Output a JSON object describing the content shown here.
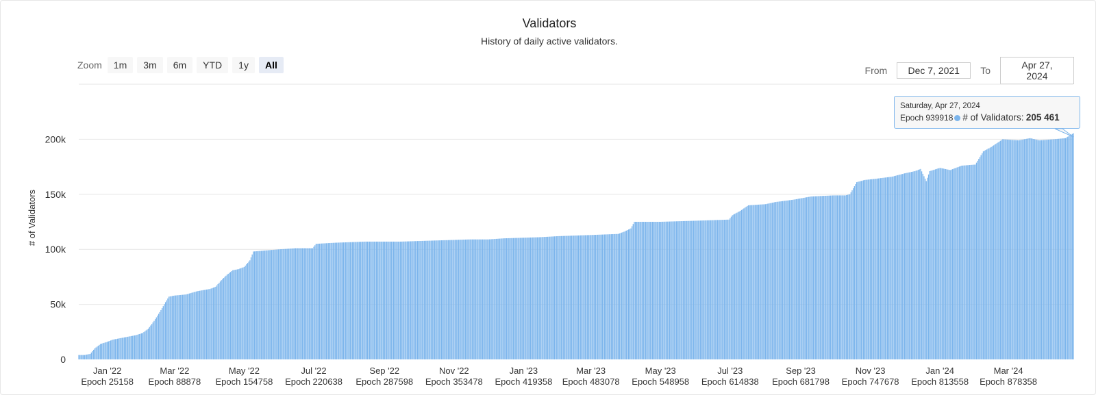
{
  "title": "Validators",
  "subtitle": "History of daily active validators.",
  "zoom": {
    "label": "Zoom",
    "buttons": [
      "1m",
      "3m",
      "6m",
      "YTD",
      "1y",
      "All"
    ],
    "active": "All"
  },
  "range": {
    "from_label": "From",
    "from_value": "Dec 7, 2021",
    "to_label": "To",
    "to_value": "Apr 27, 2024"
  },
  "tooltip": {
    "date": "Saturday, Apr 27, 2024",
    "epoch": "Epoch 939918",
    "series": "# of Validators:",
    "value": "205 461"
  },
  "colors": {
    "bar": "#7cb5ec",
    "grid": "#e6e6e6",
    "text": "#333333"
  },
  "chart_data": {
    "type": "bar",
    "title": "Validators",
    "subtitle": "History of daily active validators.",
    "ylabel": "# of Validators",
    "ylim": [
      0,
      250000
    ],
    "yticks": [
      {
        "label": "0",
        "value": 0
      },
      {
        "label": "50k",
        "value": 50000
      },
      {
        "label": "100k",
        "value": 100000
      },
      {
        "label": "150k",
        "value": 150000
      },
      {
        "label": "200k",
        "value": 200000
      }
    ],
    "xlim": [
      "2021-12-07",
      "2024-04-27"
    ],
    "xticks": [
      {
        "month": "Jan '22",
        "epoch": "Epoch 25158",
        "date": "2022-01-01"
      },
      {
        "month": "Mar '22",
        "epoch": "Epoch 88878",
        "date": "2022-03-01"
      },
      {
        "month": "May '22",
        "epoch": "Epoch 154758",
        "date": "2022-05-01"
      },
      {
        "month": "Jul '22",
        "epoch": "Epoch 220638",
        "date": "2022-07-01"
      },
      {
        "month": "Sep '22",
        "epoch": "Epoch 287598",
        "date": "2022-09-01"
      },
      {
        "month": "Nov '22",
        "epoch": "Epoch 353478",
        "date": "2022-11-01"
      },
      {
        "month": "Jan '23",
        "epoch": "Epoch 419358",
        "date": "2023-01-01"
      },
      {
        "month": "Mar '23",
        "epoch": "Epoch 483078",
        "date": "2023-03-01"
      },
      {
        "month": "May '23",
        "epoch": "Epoch 548958",
        "date": "2023-05-01"
      },
      {
        "month": "Jul '23",
        "epoch": "Epoch 614838",
        "date": "2023-07-01"
      },
      {
        "month": "Sep '23",
        "epoch": "Epoch 681798",
        "date": "2023-09-01"
      },
      {
        "month": "Nov '23",
        "epoch": "Epoch 747678",
        "date": "2023-11-01"
      },
      {
        "month": "Jan '24",
        "epoch": "Epoch 813558",
        "date": "2024-01-01"
      },
      {
        "month": "Mar '24",
        "epoch": "Epoch 878358",
        "date": "2024-03-01"
      }
    ],
    "series": [
      {
        "name": "# of Validators",
        "points": [
          [
            "2021-12-07",
            4000
          ],
          [
            "2021-12-12",
            4000
          ],
          [
            "2021-12-17",
            5000
          ],
          [
            "2021-12-21",
            10000
          ],
          [
            "2021-12-26",
            14000
          ],
          [
            "2022-01-01",
            16000
          ],
          [
            "2022-01-06",
            18000
          ],
          [
            "2022-01-11",
            19000
          ],
          [
            "2022-01-16",
            20000
          ],
          [
            "2022-01-21",
            21000
          ],
          [
            "2022-01-26",
            22000
          ],
          [
            "2022-02-01",
            24000
          ],
          [
            "2022-02-06",
            28000
          ],
          [
            "2022-02-11",
            35000
          ],
          [
            "2022-02-16",
            43000
          ],
          [
            "2022-02-21",
            52000
          ],
          [
            "2022-02-24",
            57000
          ],
          [
            "2022-03-01",
            58000
          ],
          [
            "2022-03-11",
            59000
          ],
          [
            "2022-03-21",
            62000
          ],
          [
            "2022-04-01",
            64000
          ],
          [
            "2022-04-06",
            66000
          ],
          [
            "2022-04-11",
            72000
          ],
          [
            "2022-04-16",
            77000
          ],
          [
            "2022-04-21",
            81000
          ],
          [
            "2022-04-26",
            82000
          ],
          [
            "2022-05-01",
            84000
          ],
          [
            "2022-05-06",
            90000
          ],
          [
            "2022-05-09",
            98000
          ],
          [
            "2022-05-20",
            99000
          ],
          [
            "2022-06-01",
            100000
          ],
          [
            "2022-06-15",
            101000
          ],
          [
            "2022-06-30",
            101000
          ],
          [
            "2022-07-03",
            105000
          ],
          [
            "2022-07-20",
            106000
          ],
          [
            "2022-08-15",
            107000
          ],
          [
            "2022-09-15",
            107000
          ],
          [
            "2022-10-15",
            108000
          ],
          [
            "2022-11-15",
            109000
          ],
          [
            "2022-12-01",
            109000
          ],
          [
            "2022-12-15",
            110000
          ],
          [
            "2023-01-15",
            111000
          ],
          [
            "2023-02-01",
            112000
          ],
          [
            "2023-03-01",
            113000
          ],
          [
            "2023-03-25",
            114000
          ],
          [
            "2023-03-30",
            116000
          ],
          [
            "2023-04-05",
            119000
          ],
          [
            "2023-04-08",
            125000
          ],
          [
            "2023-05-01",
            125000
          ],
          [
            "2023-06-01",
            126000
          ],
          [
            "2023-06-30",
            127000
          ],
          [
            "2023-07-03",
            131000
          ],
          [
            "2023-07-10",
            135000
          ],
          [
            "2023-07-17",
            140000
          ],
          [
            "2023-08-01",
            141000
          ],
          [
            "2023-08-10",
            143000
          ],
          [
            "2023-08-25",
            145000
          ],
          [
            "2023-09-10",
            148000
          ],
          [
            "2023-09-30",
            149000
          ],
          [
            "2023-10-10",
            149000
          ],
          [
            "2023-10-14",
            150000
          ],
          [
            "2023-10-20",
            161000
          ],
          [
            "2023-10-27",
            163000
          ],
          [
            "2023-11-05",
            164000
          ],
          [
            "2023-11-20",
            166000
          ],
          [
            "2023-12-01",
            169000
          ],
          [
            "2023-12-10",
            171000
          ],
          [
            "2023-12-15",
            173000
          ],
          [
            "2023-12-20",
            162000
          ],
          [
            "2023-12-23",
            171000
          ],
          [
            "2024-01-01",
            174000
          ],
          [
            "2024-01-10",
            172000
          ],
          [
            "2024-01-20",
            176000
          ],
          [
            "2024-02-01",
            177000
          ],
          [
            "2024-02-08",
            189000
          ],
          [
            "2024-02-15",
            193000
          ],
          [
            "2024-02-25",
            200000
          ],
          [
            "2024-03-10",
            199000
          ],
          [
            "2024-03-20",
            201000
          ],
          [
            "2024-03-28",
            199000
          ],
          [
            "2024-04-10",
            200000
          ],
          [
            "2024-04-20",
            201000
          ],
          [
            "2024-04-27",
            205461
          ]
        ]
      }
    ]
  }
}
